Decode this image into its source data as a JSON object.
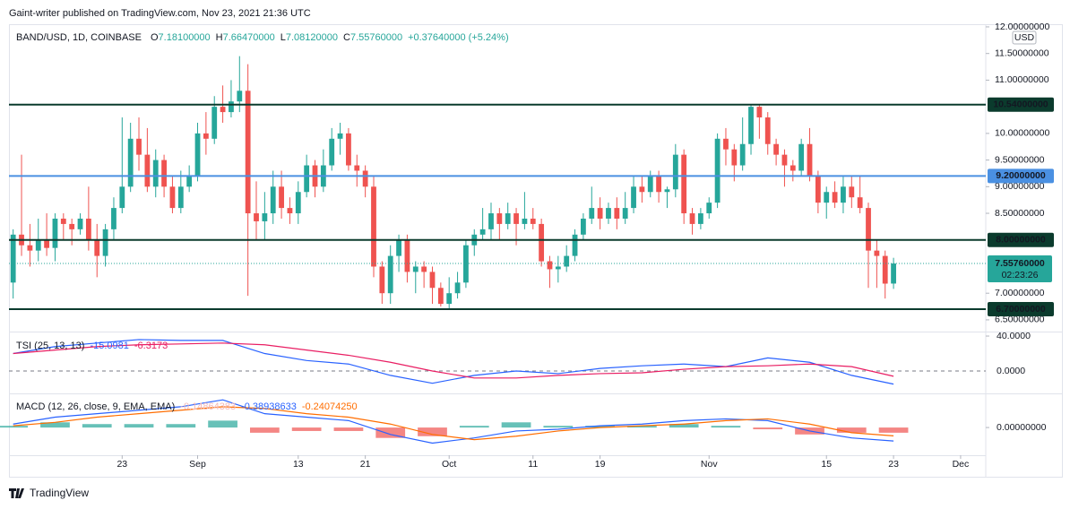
{
  "header": {
    "publisher": "Gaint-writer published on TradingView.com, Nov 23, 2021 21:36 UTC",
    "brand": "TradingView"
  },
  "chart_data": [
    {
      "type": "candlestick",
      "symbol": "BAND/USD, 1D, COINBASE",
      "ohlc_legend": [
        {
          "key": "O",
          "value": "7.18100000"
        },
        {
          "key": "H",
          "value": "7.66470000"
        },
        {
          "key": "L",
          "value": "7.08120000"
        },
        {
          "key": "C",
          "value": "7.55760000"
        }
      ],
      "change": "+0.37640000 (+5.24%)",
      "currency": "USD",
      "up_color": "#26a69a",
      "down_color": "#ef5350",
      "open": [
        7.2,
        8.1,
        7.9,
        7.8,
        8.0,
        7.85,
        8.4,
        8.3,
        8.2,
        8.4,
        8.0,
        7.7,
        8.2,
        8.6,
        9.0,
        9.9,
        9.6,
        9.0,
        9.5,
        9.0,
        8.6,
        9.0,
        9.2,
        10.0,
        9.9,
        10.5,
        10.4,
        10.6,
        10.8,
        8.5,
        8.35,
        8.5,
        9.0,
        8.6,
        8.5,
        8.9,
        9.4,
        9.0,
        9.4,
        9.9,
        10.0,
        9.4,
        9.3,
        9.0,
        7.5,
        7.0,
        7.7,
        8.0,
        7.4,
        7.5,
        7.4,
        7.1,
        6.8,
        7.0,
        7.2,
        7.9,
        8.1,
        8.2,
        8.5,
        8.3,
        8.5,
        8.3,
        8.4,
        8.3,
        7.6,
        7.45,
        7.5,
        7.7,
        8.1,
        8.4,
        8.6,
        8.4,
        8.6,
        8.4,
        8.6,
        9.0,
        8.9,
        9.2,
        8.9,
        8.95,
        9.6,
        8.5,
        8.3,
        8.5,
        8.7,
        9.9,
        9.7,
        9.4,
        9.8,
        10.5,
        10.3,
        9.8,
        9.6,
        9.4,
        9.3,
        9.8,
        9.2,
        8.7,
        8.9,
        8.7,
        9.0,
        8.8,
        8.6,
        7.8,
        7.7,
        7.181
      ],
      "high": [
        8.2,
        9.6,
        8.3,
        8.4,
        8.5,
        8.5,
        8.5,
        8.4,
        8.5,
        9.0,
        8.3,
        8.3,
        8.8,
        10.3,
        10.2,
        10.3,
        10.1,
        9.7,
        9.6,
        9.2,
        9.3,
        9.4,
        10.2,
        10.4,
        10.7,
        10.9,
        11.0,
        11.45,
        11.3,
        9.1,
        8.9,
        9.3,
        9.3,
        8.8,
        9.1,
        9.6,
        9.5,
        9.7,
        10.1,
        10.2,
        10.1,
        9.6,
        9.4,
        9.2,
        7.6,
        7.9,
        8.1,
        8.1,
        7.6,
        7.6,
        7.5,
        7.2,
        7.3,
        7.4,
        8.0,
        8.2,
        8.6,
        8.7,
        8.6,
        8.7,
        8.6,
        8.9,
        8.6,
        8.4,
        7.7,
        7.7,
        7.9,
        8.2,
        8.5,
        9.0,
        8.8,
        8.7,
        8.8,
        8.9,
        9.2,
        9.2,
        9.3,
        9.3,
        9.0,
        9.8,
        9.7,
        8.6,
        8.6,
        8.8,
        10.0,
        10.1,
        9.8,
        10.3,
        10.54,
        10.54,
        10.4,
        9.9,
        9.7,
        9.5,
        9.9,
        10.1,
        9.3,
        9.0,
        9.1,
        9.2,
        9.2,
        9.2,
        8.7,
        8.0,
        7.8,
        7.6647
      ],
      "low": [
        6.9,
        7.7,
        7.5,
        7.6,
        7.7,
        7.6,
        8.0,
        7.9,
        8.1,
        7.8,
        7.3,
        7.5,
        8.0,
        8.5,
        8.9,
        9.3,
        8.9,
        8.8,
        8.8,
        8.5,
        8.5,
        8.9,
        9.1,
        9.6,
        9.8,
        10.2,
        10.3,
        10.4,
        6.95,
        8.0,
        8.0,
        8.3,
        8.4,
        8.3,
        8.3,
        8.8,
        8.8,
        8.9,
        9.3,
        9.6,
        9.3,
        9.0,
        8.8,
        7.3,
        6.8,
        6.8,
        7.4,
        7.2,
        7.0,
        7.1,
        6.8,
        6.75,
        6.7,
        6.9,
        7.1,
        7.7,
        8.0,
        8.0,
        8.0,
        8.2,
        7.9,
        8.2,
        8.2,
        7.5,
        7.1,
        7.2,
        7.4,
        7.6,
        8.0,
        8.3,
        8.2,
        8.3,
        8.2,
        8.3,
        8.5,
        8.7,
        8.8,
        8.7,
        8.6,
        8.8,
        8.3,
        8.1,
        8.2,
        8.4,
        8.6,
        9.4,
        9.1,
        9.3,
        9.6,
        9.9,
        9.6,
        9.4,
        9.0,
        9.1,
        9.2,
        9.1,
        8.5,
        8.4,
        8.6,
        8.5,
        8.6,
        8.5,
        7.1,
        7.1,
        6.9,
        7.0812
      ],
      "close": [
        8.1,
        7.9,
        7.8,
        8.0,
        7.85,
        8.4,
        8.3,
        8.2,
        8.4,
        8.0,
        7.7,
        8.2,
        8.6,
        9.0,
        9.9,
        9.6,
        9.0,
        9.5,
        9.0,
        8.6,
        9.0,
        9.2,
        10.0,
        9.9,
        10.5,
        10.4,
        10.6,
        10.8,
        8.5,
        8.35,
        8.5,
        9.0,
        8.6,
        8.5,
        8.9,
        9.4,
        9.0,
        9.4,
        9.9,
        10.0,
        9.4,
        9.3,
        9.0,
        7.5,
        7.0,
        7.7,
        8.0,
        7.4,
        7.5,
        7.4,
        7.1,
        6.8,
        7.0,
        7.2,
        7.9,
        8.1,
        8.2,
        8.5,
        8.3,
        8.5,
        8.3,
        8.4,
        8.3,
        7.6,
        7.45,
        7.5,
        7.7,
        8.1,
        8.4,
        8.6,
        8.4,
        8.6,
        8.4,
        8.6,
        9.0,
        8.9,
        9.2,
        8.9,
        8.95,
        9.6,
        8.5,
        8.3,
        8.5,
        8.7,
        9.9,
        9.7,
        9.4,
        9.8,
        10.5,
        10.3,
        9.8,
        9.6,
        9.4,
        9.3,
        9.8,
        9.2,
        8.7,
        8.9,
        8.7,
        9.0,
        8.8,
        8.6,
        7.8,
        7.7,
        7.18,
        7.5576
      ],
      "levels": [
        {
          "value": 10.54,
          "label": "10.54000000",
          "color": "#0b3b2d"
        },
        {
          "value": 9.2,
          "label": "9.20000000",
          "color": "#4a90e2"
        },
        {
          "value": 8.0,
          "label": "8.00000000",
          "color": "#0b3b2d"
        },
        {
          "value": 6.7,
          "label": "6.70000000",
          "color": "#0b3b2d"
        }
      ],
      "last_price": {
        "value": 7.5576,
        "label": "7.55760000",
        "countdown": "02:23:26"
      },
      "ylim": [
        6.28,
        12.05
      ],
      "yticks": [
        {
          "value": 12,
          "label": "12.00000000"
        },
        {
          "value": 11.5,
          "label": "11.50000000"
        },
        {
          "value": 11,
          "label": "11.00000000"
        },
        {
          "value": 10,
          "label": "10.00000000"
        },
        {
          "value": 9.5,
          "label": "9.50000000"
        },
        {
          "value": 9,
          "label": "9.00000000"
        },
        {
          "value": 8.5,
          "label": "8.50000000"
        },
        {
          "value": 7,
          "label": "7.00000000"
        },
        {
          "value": 6.5,
          "label": "6.50000000"
        }
      ],
      "xlim": [
        -0.5,
        116
      ],
      "xticks": [
        {
          "value": 13,
          "label": "23"
        },
        {
          "value": 22,
          "label": "Sep"
        },
        {
          "value": 34,
          "label": "13"
        },
        {
          "value": 42,
          "label": "21"
        },
        {
          "value": 52,
          "label": "Oct"
        },
        {
          "value": 62,
          "label": "11"
        },
        {
          "value": 70,
          "label": "19"
        },
        {
          "value": 83,
          "label": "Nov"
        },
        {
          "value": 97,
          "label": "15"
        },
        {
          "value": 105,
          "label": "23"
        },
        {
          "value": 113,
          "label": "Dec"
        }
      ]
    },
    {
      "type": "line",
      "title": "TSI (25, 13, 13)",
      "legend_values": [
        "-15.0981",
        "-6.3173"
      ],
      "x": [
        0,
        5,
        10,
        15,
        20,
        25,
        30,
        35,
        40,
        45,
        50,
        55,
        60,
        65,
        70,
        75,
        80,
        85,
        90,
        95,
        100,
        105
      ],
      "series": [
        {
          "color": "#2962ff",
          "values": [
            20,
            28,
            32,
            36,
            35,
            35,
            20,
            12,
            8,
            -5,
            -14,
            -5,
            0,
            -3,
            3,
            6,
            8,
            5,
            15,
            10,
            -5,
            -15
          ]
        },
        {
          "color": "#e91e63",
          "values": [
            20,
            24,
            28,
            30,
            31,
            32,
            30,
            24,
            18,
            10,
            0,
            -8,
            -8,
            -5,
            -3,
            -2,
            2,
            5,
            6,
            8,
            5,
            -6
          ]
        }
      ],
      "ylim": [
        -24.6,
        43.1
      ],
      "yticks": [
        {
          "value": 40,
          "label": "40.0000"
        },
        {
          "value": 0,
          "label": "0.0000"
        }
      ]
    },
    {
      "type": "macd",
      "title": "MACD (12, 26, close, 9, EMA, EMA)",
      "legend_values": [
        {
          "value": "-0.14864383",
          "color": "#f4b8b8"
        },
        {
          "value": "-0.38938633",
          "color": "#2962ff"
        },
        {
          "value": "-0.24074250",
          "color": "#ff6d00"
        }
      ],
      "x": [
        0,
        5,
        10,
        15,
        20,
        25,
        30,
        35,
        40,
        45,
        50,
        55,
        60,
        65,
        70,
        75,
        80,
        85,
        90,
        95,
        100,
        105
      ],
      "histogram": [
        0.05,
        0.15,
        0.1,
        0.1,
        0.1,
        0.2,
        -0.15,
        -0.1,
        -0.1,
        -0.3,
        -0.25,
        0.05,
        0.15,
        0.05,
        0.05,
        0.05,
        0.1,
        0.05,
        -0.05,
        -0.2,
        -0.15,
        -0.15
      ],
      "histogram_colors": {
        "up": "#26a69a",
        "down": "#ef5350"
      },
      "series": [
        {
          "color": "#2962ff",
          "values": [
            0.1,
            0.3,
            0.4,
            0.5,
            0.6,
            0.8,
            0.4,
            0.3,
            0.2,
            -0.2,
            -0.45,
            -0.3,
            -0.1,
            -0.05,
            0.05,
            0.1,
            0.2,
            0.25,
            0.2,
            -0.1,
            -0.3,
            -0.39
          ]
        },
        {
          "color": "#ff6d00",
          "values": [
            0.05,
            0.15,
            0.3,
            0.4,
            0.5,
            0.6,
            0.55,
            0.4,
            0.3,
            0.1,
            -0.2,
            -0.35,
            -0.25,
            -0.1,
            0,
            0.05,
            0.1,
            0.2,
            0.25,
            0.1,
            -0.15,
            -0.24
          ]
        }
      ],
      "ylim": [
        -0.8,
        0.96
      ],
      "yticks": [
        {
          "value": 0,
          "label": "0.00000000"
        }
      ]
    }
  ]
}
